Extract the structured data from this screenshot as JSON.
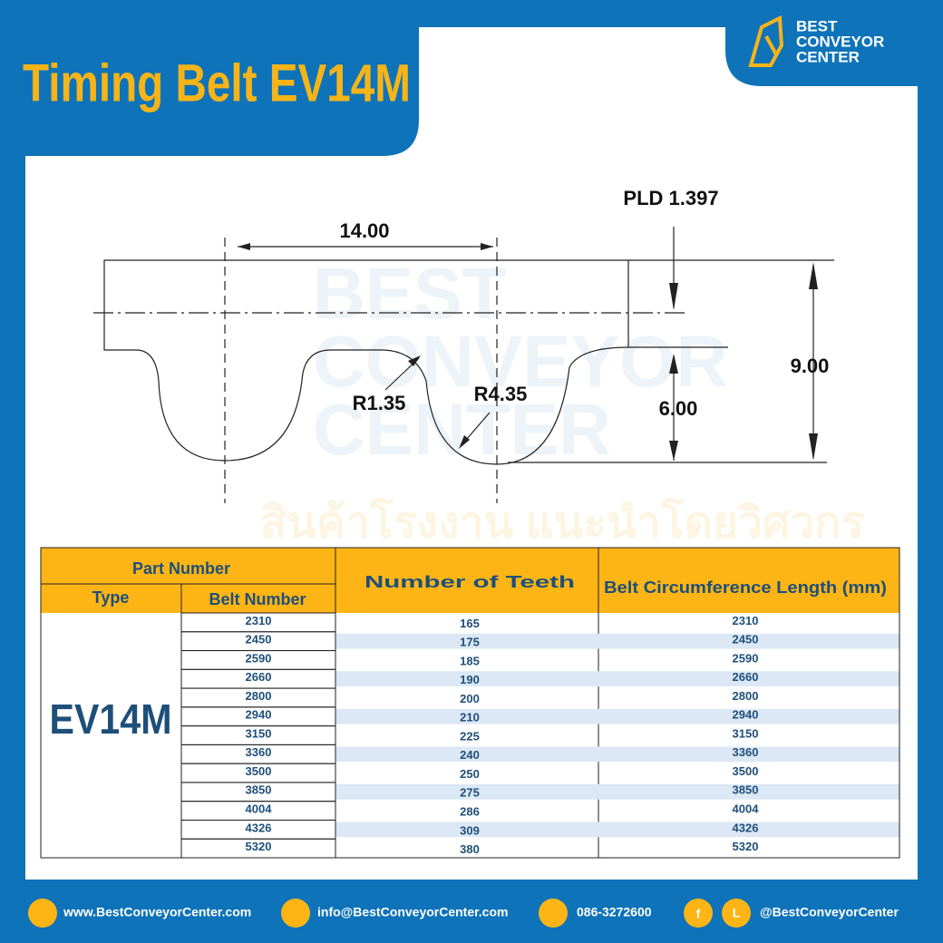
{
  "header": {
    "title": "Timing Belt EV14M"
  },
  "logo": {
    "lines": [
      "BEST",
      "CONVEYOR",
      "CENTER"
    ]
  },
  "watermark": {
    "lines": [
      "BEST",
      "CONVEYOR",
      "CENTER"
    ],
    "tagline": "สินค้าโรงงาน แนะนำโดยวิศวกร"
  },
  "diagram": {
    "pld": "PLD 1.397",
    "pitch": "14.00",
    "height": "9.00",
    "tooth_height": "6.00",
    "radius_small": "R1.35",
    "radius_large": "R4.35"
  },
  "table": {
    "headers": {
      "part_number": "Part Number",
      "type": "Type",
      "belt_number": "Belt Number",
      "teeth": "Number of Teeth",
      "length": "Belt Circumference Length (mm)"
    },
    "type": "EV14M",
    "rows": [
      [
        2310,
        165,
        2310
      ],
      [
        2450,
        175,
        2450
      ],
      [
        2590,
        185,
        2590
      ],
      [
        2660,
        190,
        2660
      ],
      [
        2800,
        200,
        2800
      ],
      [
        2940,
        210,
        2940
      ],
      [
        3150,
        225,
        3150
      ],
      [
        3360,
        240,
        3360
      ],
      [
        3500,
        250,
        3500
      ],
      [
        3850,
        275,
        3850
      ],
      [
        4004,
        286,
        4004
      ],
      [
        4326,
        309,
        4326
      ],
      [
        5320,
        380,
        5320
      ]
    ]
  },
  "footer": {
    "website": "www.BestConveyorCenter.com",
    "email": "info@BestConveyorCenter.com",
    "phone": "086-3272600",
    "facebook_icon": "f",
    "line_icon": "L",
    "social": "@BestConveyorCenter"
  }
}
